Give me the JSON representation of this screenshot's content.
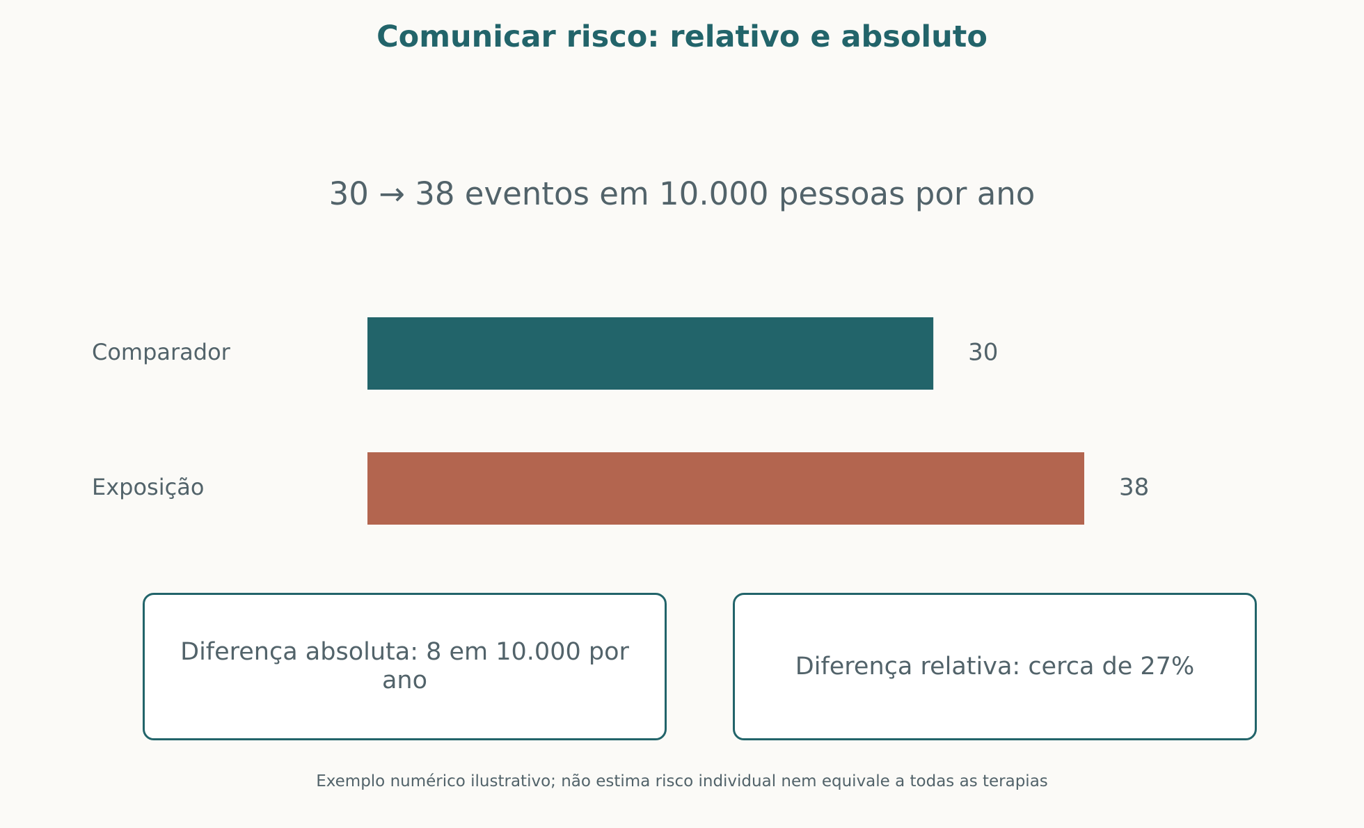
{
  "title": "Comunicar risco: relativo e absoluto",
  "subtitle": "30 → 38 eventos em 10.000 pessoas por ano",
  "chart_data": {
    "type": "bar",
    "orientation": "horizontal",
    "categories": [
      "Comparador",
      "Exposição"
    ],
    "values": [
      30,
      38
    ],
    "data_labels": [
      "30",
      "38"
    ],
    "colors": [
      "#22646a",
      "#b3654f"
    ],
    "xlim": [
      0,
      38
    ],
    "grid": false,
    "legend": "none"
  },
  "callouts": {
    "absolute": "Diferença absoluta: 8 em 10.000 por ano",
    "relative": "Diferença relativa: cerca de 27%"
  },
  "footnote": "Exemplo numérico ilustrativo; não estima risco individual nem equivale a todas as terapias",
  "colors": {
    "accent": "#22646a",
    "text": "#52636a",
    "background": "#fbfaf7"
  }
}
